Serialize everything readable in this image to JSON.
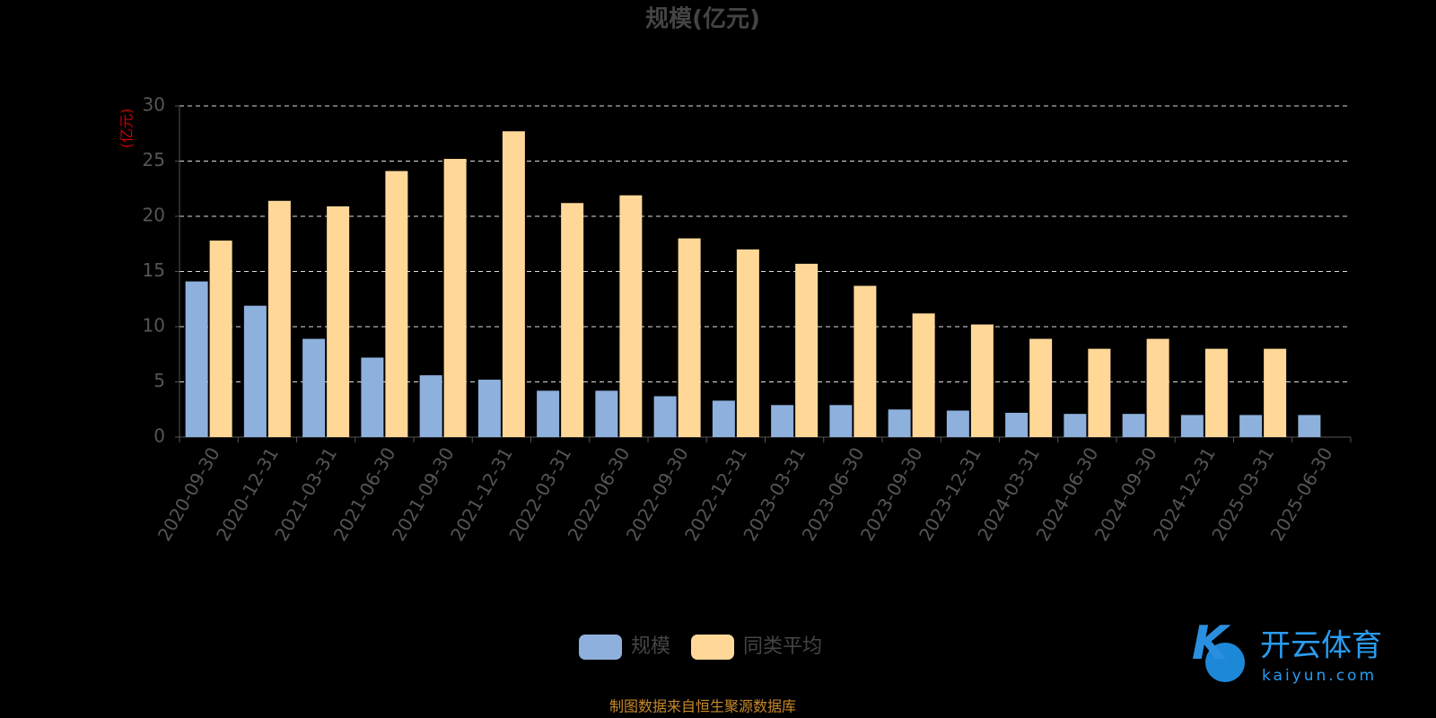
{
  "chart_data": {
    "type": "bar",
    "title": "规模(亿元)",
    "y_label": "(亿元)",
    "categories": [
      "2020-09-30",
      "2020-12-31",
      "2021-03-31",
      "2021-06-30",
      "2021-09-30",
      "2021-12-31",
      "2022-03-31",
      "2022-06-30",
      "2022-09-30",
      "2022-12-31",
      "2023-03-31",
      "2023-06-30",
      "2023-09-30",
      "2023-12-31",
      "2024-03-31",
      "2024-06-30",
      "2024-09-30",
      "2024-12-31",
      "2025-03-31",
      "2025-06-30"
    ],
    "series": [
      {
        "name": "规模",
        "color": "#8eb0dd",
        "values": [
          14.1,
          11.9,
          8.9,
          7.2,
          5.6,
          5.2,
          4.2,
          4.2,
          3.7,
          3.3,
          2.9,
          2.9,
          2.5,
          2.4,
          2.2,
          2.1,
          2.1,
          2.0,
          2.0,
          2.0
        ]
      },
      {
        "name": "同类平均",
        "color": "#ffd898",
        "values": [
          17.8,
          21.4,
          20.9,
          24.1,
          25.2,
          27.7,
          21.2,
          21.9,
          18.0,
          17.0,
          15.7,
          13.7,
          11.2,
          10.2,
          8.9,
          8.0,
          8.9,
          8.0,
          8.0,
          null
        ]
      }
    ],
    "ylim": [
      0,
      30
    ],
    "yticks": [
      0,
      5,
      10,
      15,
      20,
      25,
      30
    ],
    "grid": true,
    "source": "制图数据来自恒生聚源数据库"
  },
  "watermark": {
    "brand": "开云体育",
    "site": "kaiyun.com"
  }
}
